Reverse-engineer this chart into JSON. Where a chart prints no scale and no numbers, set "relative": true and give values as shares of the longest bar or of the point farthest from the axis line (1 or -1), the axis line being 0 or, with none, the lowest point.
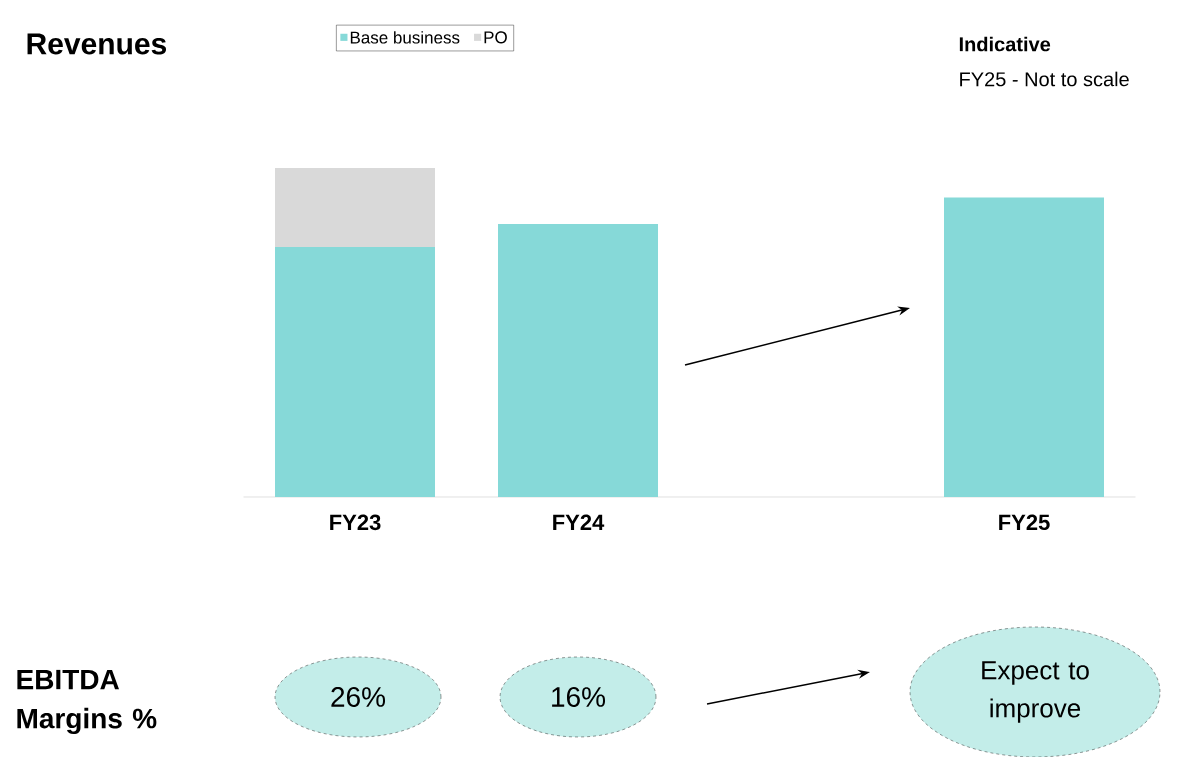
{
  "chart_data": {
    "type": "bar",
    "stacked": true,
    "relative": true,
    "title": "Revenues",
    "legend": "top",
    "categories": [
      "FY23",
      "FY24",
      null,
      "FY25"
    ],
    "series": [
      {
        "name": "Base business",
        "color": "#86d9d8",
        "values": [
          0.76,
          0.83,
          null,
          0.91
        ]
      },
      {
        "name": "PO",
        "color": "#d9d9d9",
        "values": [
          0.24,
          null,
          null,
          null
        ]
      }
    ],
    "annotations": [
      "Indicative",
      "FY25 - Not to scale",
      "EBITDA Margins %",
      "26%",
      "16%",
      "Expect to improve"
    ]
  }
}
